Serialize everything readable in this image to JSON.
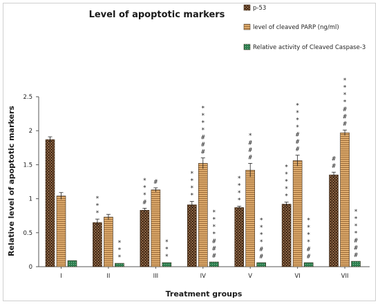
{
  "chart_data": {
    "type": "bar",
    "title": "Level of apoptotic markers",
    "xlabel": "Treatment groups",
    "ylabel": "Relative level of apoptotic markers",
    "ylim": [
      0,
      2.5
    ],
    "yticks": [
      "0",
      "0.5",
      "1",
      "1.5",
      "2",
      "2.5"
    ],
    "grid": false,
    "legend_position": "top-right",
    "categories": [
      "I",
      "II",
      "III",
      "IV",
      "V",
      "VI",
      "VII"
    ],
    "series": [
      {
        "name": "p-53",
        "color": "#5a3a22",
        "values": [
          1.87,
          0.65,
          0.83,
          0.91,
          0.87,
          0.92,
          1.35
        ],
        "errors": [
          0.04,
          0.05,
          0.03,
          0.05,
          0.02,
          0.03,
          0.04
        ],
        "annotations": [
          "",
          "***",
          "***#",
          "****",
          "****",
          "*****",
          "##"
        ]
      },
      {
        "name": "level of cleaved PARP (ng/ml)",
        "color": "#e0ad6e",
        "values": [
          1.04,
          0.73,
          1.13,
          1.52,
          1.42,
          1.56,
          1.97
        ],
        "errors": [
          0.05,
          0.04,
          0.03,
          0.08,
          0.1,
          0.08,
          0.04
        ],
        "annotations": [
          "",
          "",
          "#",
          "****###",
          "*###",
          "****###",
          "****###"
        ]
      },
      {
        "name": "Relative activity of Cleaved Caspase-3",
        "color": "#2e7d4f",
        "values": [
          0.09,
          0.05,
          0.06,
          0.07,
          0.06,
          0.06,
          0.08
        ],
        "errors": [
          0,
          0,
          0,
          0,
          0,
          0,
          0
        ],
        "annotations": [
          "",
          "***",
          "***",
          "****###",
          "****##",
          "****##",
          "****###"
        ]
      }
    ]
  }
}
